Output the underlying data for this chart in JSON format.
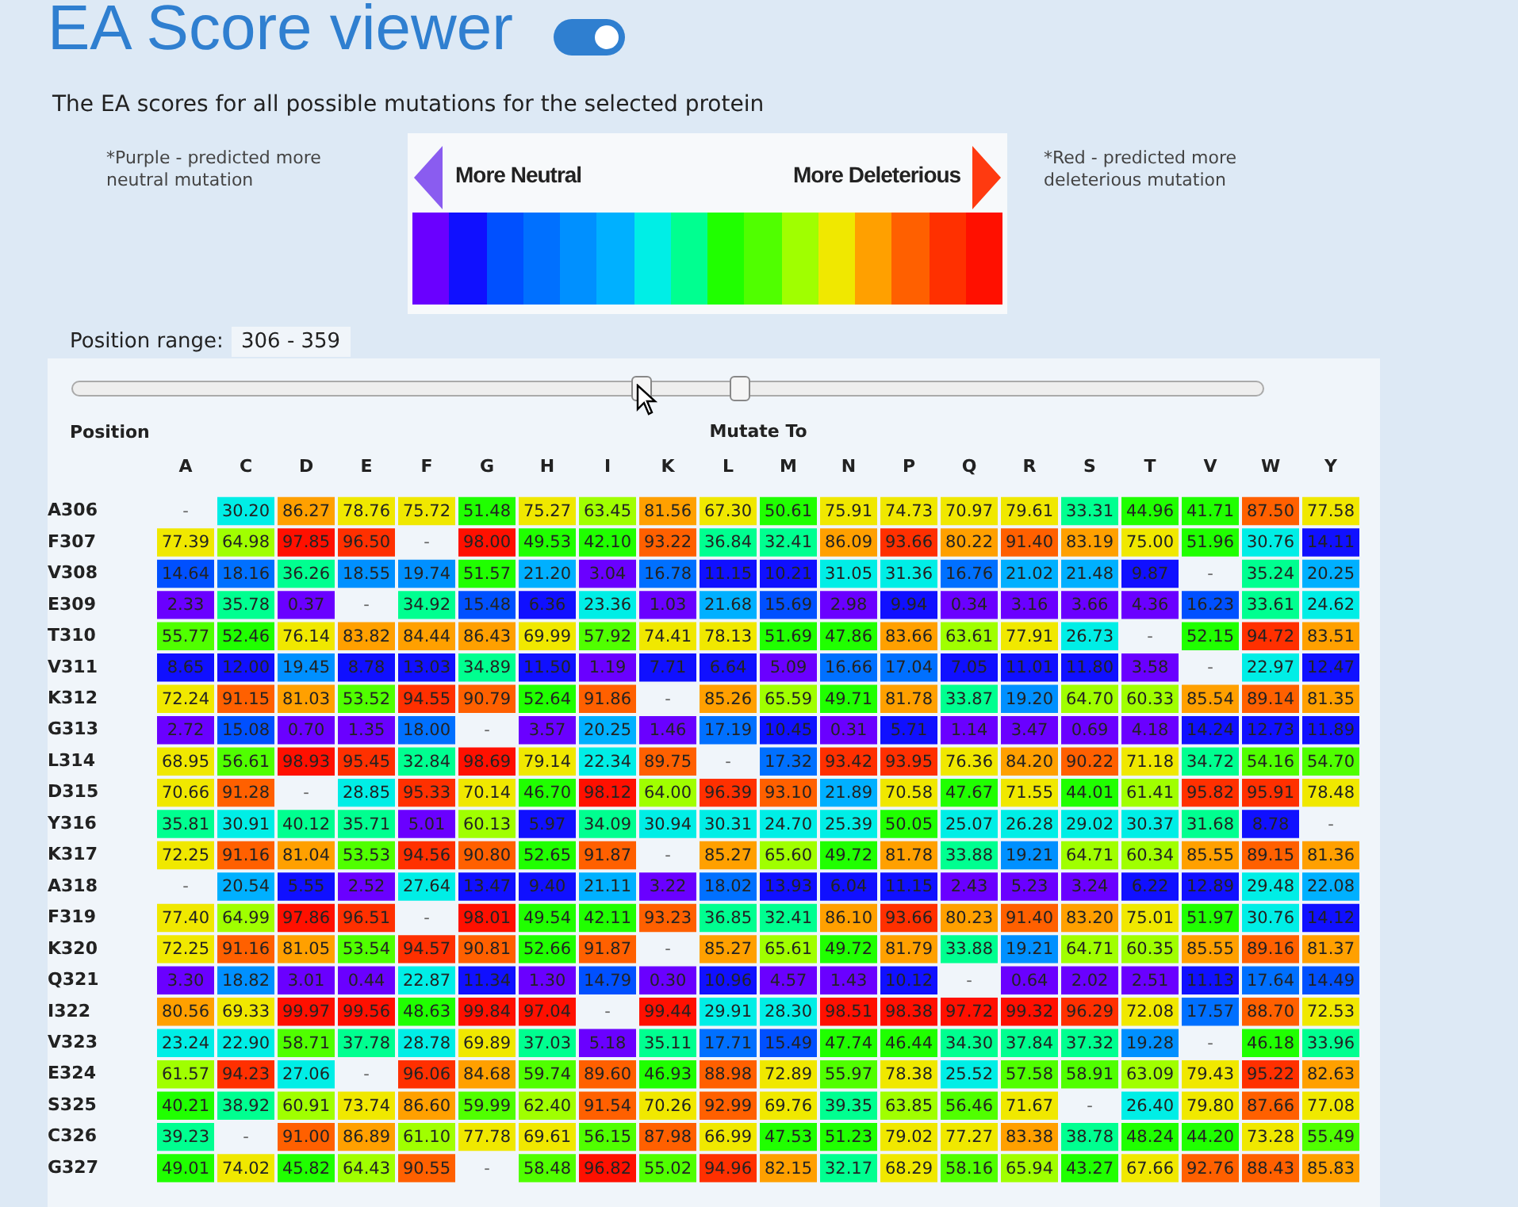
{
  "chart_data": {
    "type": "heatmap",
    "title": "EA Score viewer",
    "subtitle": "The EA scores for all possible mutations for the selected protein",
    "xlabel": "Mutate To",
    "ylabel": "Position",
    "annotations": [
      "*Purple - predicted more neutral mutation",
      "*Red - predicted more deleterious mutation",
      "More Neutral",
      "More Deleterious",
      "Position range:",
      "306 - 359"
    ],
    "categories": [
      "A",
      "C",
      "D",
      "E",
      "F",
      "G",
      "H",
      "I",
      "K",
      "L",
      "M",
      "N",
      "P",
      "Q",
      "R",
      "S",
      "T",
      "V",
      "W",
      "Y"
    ],
    "y_categories": [
      "A306",
      "F307",
      "V308",
      "E309",
      "T310",
      "V311",
      "K312",
      "G313",
      "L314",
      "D315",
      "Y316",
      "K317",
      "A318",
      "F319",
      "K320",
      "Q321",
      "I322",
      "V323",
      "E324",
      "S325",
      "C326",
      "G327"
    ],
    "cells": [
      [
        null,
        30.2,
        86.27,
        78.76,
        75.72,
        51.48,
        75.27,
        63.45,
        81.56,
        67.3,
        50.61,
        75.91,
        74.73,
        70.97,
        79.61,
        33.31,
        44.96,
        41.71,
        87.5,
        77.58
      ],
      [
        77.39,
        64.98,
        97.85,
        96.5,
        null,
        98.0,
        49.53,
        42.1,
        93.22,
        36.84,
        32.41,
        86.09,
        93.66,
        80.22,
        91.4,
        83.19,
        75.0,
        51.96,
        30.76,
        14.11
      ],
      [
        14.64,
        18.16,
        36.26,
        18.55,
        19.74,
        51.57,
        21.2,
        3.04,
        16.78,
        11.15,
        10.21,
        31.05,
        31.36,
        16.76,
        21.02,
        21.48,
        9.87,
        null,
        35.24,
        20.25
      ],
      [
        2.33,
        35.78,
        0.37,
        null,
        34.92,
        15.48,
        6.36,
        23.36,
        1.03,
        21.68,
        15.69,
        2.98,
        9.94,
        0.34,
        3.16,
        3.66,
        4.36,
        16.23,
        33.61,
        24.62
      ],
      [
        55.77,
        52.46,
        76.14,
        83.82,
        84.44,
        86.43,
        69.99,
        57.92,
        74.41,
        78.13,
        51.69,
        47.86,
        83.66,
        63.61,
        77.91,
        26.73,
        null,
        52.15,
        94.72,
        83.51
      ],
      [
        8.65,
        12.0,
        19.45,
        8.78,
        13.03,
        34.89,
        11.5,
        1.19,
        7.71,
        6.64,
        5.09,
        16.66,
        17.04,
        7.05,
        11.01,
        11.8,
        3.58,
        null,
        22.97,
        12.47
      ],
      [
        72.24,
        91.15,
        81.03,
        53.52,
        94.55,
        90.79,
        52.64,
        91.86,
        null,
        85.26,
        65.59,
        49.71,
        81.78,
        33.87,
        19.2,
        64.7,
        60.33,
        85.54,
        89.14,
        81.35
      ],
      [
        2.72,
        15.08,
        0.7,
        1.35,
        18.0,
        null,
        3.57,
        20.25,
        1.46,
        17.19,
        10.45,
        0.31,
        5.71,
        1.14,
        3.47,
        0.69,
        4.18,
        14.24,
        12.73,
        11.89
      ],
      [
        68.95,
        56.61,
        98.93,
        95.45,
        32.84,
        98.69,
        79.14,
        22.34,
        89.75,
        null,
        17.32,
        93.42,
        93.95,
        76.36,
        84.2,
        90.22,
        71.18,
        34.72,
        54.16,
        54.7
      ],
      [
        70.66,
        91.28,
        null,
        28.85,
        95.33,
        70.14,
        46.7,
        98.12,
        64.0,
        96.39,
        93.1,
        21.89,
        70.58,
        47.67,
        71.55,
        44.01,
        61.41,
        95.82,
        95.91,
        78.48
      ],
      [
        35.81,
        30.91,
        40.12,
        35.71,
        5.01,
        60.13,
        5.97,
        34.09,
        30.94,
        30.31,
        24.7,
        25.39,
        50.05,
        25.07,
        26.28,
        29.02,
        30.37,
        31.68,
        8.78,
        null
      ],
      [
        72.25,
        91.16,
        81.04,
        53.53,
        94.56,
        90.8,
        52.65,
        91.87,
        null,
        85.27,
        65.6,
        49.72,
        81.78,
        33.88,
        19.21,
        64.71,
        60.34,
        85.55,
        89.15,
        81.36
      ],
      [
        null,
        20.54,
        5.55,
        2.52,
        27.64,
        13.47,
        9.4,
        21.11,
        3.22,
        18.02,
        13.93,
        6.04,
        11.15,
        2.43,
        5.23,
        3.24,
        6.22,
        12.89,
        29.48,
        22.08
      ],
      [
        77.4,
        64.99,
        97.86,
        96.51,
        null,
        98.01,
        49.54,
        42.11,
        93.23,
        36.85,
        32.41,
        86.1,
        93.66,
        80.23,
        91.4,
        83.2,
        75.01,
        51.97,
        30.76,
        14.12
      ],
      [
        72.25,
        91.16,
        81.05,
        53.54,
        94.57,
        90.81,
        52.66,
        91.87,
        null,
        85.27,
        65.61,
        49.72,
        81.79,
        33.88,
        19.21,
        64.71,
        60.35,
        85.55,
        89.16,
        81.37
      ],
      [
        3.3,
        18.82,
        3.01,
        0.44,
        22.87,
        11.34,
        1.3,
        14.79,
        0.3,
        10.96,
        4.57,
        1.43,
        10.12,
        null,
        0.64,
        2.02,
        2.51,
        11.13,
        17.64,
        14.49
      ],
      [
        80.56,
        69.33,
        99.97,
        99.56,
        48.63,
        99.84,
        97.04,
        null,
        99.44,
        29.91,
        28.3,
        98.51,
        98.38,
        97.72,
        99.32,
        96.29,
        72.08,
        17.57,
        88.7,
        72.53
      ],
      [
        23.24,
        22.9,
        58.71,
        37.78,
        28.78,
        69.89,
        37.03,
        5.18,
        35.11,
        17.71,
        15.49,
        47.74,
        46.44,
        34.3,
        37.84,
        37.32,
        19.28,
        null,
        46.18,
        33.96
      ],
      [
        61.57,
        94.23,
        27.06,
        null,
        96.06,
        84.68,
        59.74,
        89.6,
        46.93,
        88.98,
        72.89,
        55.97,
        78.38,
        25.52,
        57.58,
        58.91,
        63.09,
        79.43,
        95.22,
        82.63
      ],
      [
        40.21,
        38.92,
        60.91,
        73.74,
        86.6,
        59.99,
        62.4,
        91.54,
        70.26,
        92.99,
        69.76,
        39.35,
        63.85,
        56.46,
        71.67,
        null,
        26.4,
        79.8,
        87.66,
        77.08
      ],
      [
        39.23,
        null,
        91.0,
        86.89,
        61.1,
        77.78,
        69.61,
        56.15,
        87.98,
        66.99,
        47.53,
        51.23,
        79.02,
        77.27,
        83.38,
        38.78,
        48.24,
        44.2,
        73.28,
        55.49
      ],
      [
        49.01,
        74.02,
        45.82,
        64.43,
        90.55,
        null,
        58.48,
        96.82,
        55.02,
        94.96,
        82.15,
        32.17,
        68.29,
        58.16,
        65.94,
        43.27,
        67.66,
        92.76,
        88.43,
        85.83
      ]
    ],
    "cell_labels": [
      [
        "-",
        "30.20",
        "86.27",
        "78.76",
        "75.72",
        "51.48",
        "75.27",
        "63.45",
        "81.56",
        "67.30",
        "50.61",
        "75.91",
        "74.73",
        "70.97",
        "79.61",
        "33.31",
        "44.96",
        "41.71",
        "87.50",
        "77.58"
      ],
      [
        "77.39",
        "64.98",
        "97.85",
        "96.50",
        "-",
        "98.00",
        "49.53",
        "42.10",
        "93.22",
        "36.84",
        "32.41",
        "86.09",
        "93.66",
        "80.22",
        "91.40",
        "83.19",
        "75.00",
        "51.96",
        "30.76",
        "14.11"
      ],
      [
        "14.64",
        "18.16",
        "36.26",
        "18.55",
        "19.74",
        "51.57",
        "21.20",
        "3.04",
        "16.78",
        "11.15",
        "10.21",
        "31.05",
        "31.36",
        "16.76",
        "21.02",
        "21.48",
        "9.87",
        "-",
        "35.24",
        "20.25"
      ],
      [
        "2.33",
        "35.78",
        "0.37",
        "-",
        "34.92",
        "15.48",
        "6.36",
        "23.36",
        "1.03",
        "21.68",
        "15.69",
        "2.98",
        "9.94",
        "0.34",
        "3.16",
        "3.66",
        "4.36",
        "16.23",
        "33.61",
        "24.62"
      ],
      [
        "55.77",
        "52.46",
        "76.14",
        "83.82",
        "84.44",
        "86.43",
        "69.99",
        "57.92",
        "74.41",
        "78.13",
        "51.69",
        "47.86",
        "83.66",
        "63.61",
        "77.91",
        "26.73",
        "-",
        "52.15",
        "94.72",
        "83.51"
      ],
      [
        "8.65",
        "12.00",
        "19.45",
        "8.78",
        "13.03",
        "34.89",
        "11.50",
        "1.19",
        "7.71",
        "6.64",
        "5.09",
        "16.66",
        "17.04",
        "7.05",
        "11.01",
        "11.80",
        "3.58",
        "-",
        "22.97",
        "12.47"
      ],
      [
        "72.24",
        "91.15",
        "81.03",
        "53.52",
        "94.55",
        "90.79",
        "52.64",
        "91.86",
        "-",
        "85.26",
        "65.59",
        "49.71",
        "81.78",
        "33.87",
        "19.20",
        "64.70",
        "60.33",
        "85.54",
        "89.14",
        "81.35"
      ],
      [
        "2.72",
        "15.08",
        "0.70",
        "1.35",
        "18.00",
        "-",
        "3.57",
        "20.25",
        "1.46",
        "17.19",
        "10.45",
        "0.31",
        "5.71",
        "1.14",
        "3.47",
        "0.69",
        "4.18",
        "14.24",
        "12.73",
        "11.89"
      ],
      [
        "68.95",
        "56.61",
        "98.93",
        "95.45",
        "32.84",
        "98.69",
        "79.14",
        "22.34",
        "89.75",
        "-",
        "17.32",
        "93.42",
        "93.95",
        "76.36",
        "84.20",
        "90.22",
        "71.18",
        "34.72",
        "54.16",
        "54.70"
      ],
      [
        "70.66",
        "91.28",
        "-",
        "28.85",
        "95.33",
        "70.14",
        "46.70",
        "98.12",
        "64.00",
        "96.39",
        "93.10",
        "21.89",
        "70.58",
        "47.67",
        "71.55",
        "44.01",
        "61.41",
        "95.82",
        "95.91",
        "78.48"
      ],
      [
        "35.81",
        "30.91",
        "40.12",
        "35.71",
        "5.01",
        "60.13",
        "5.97",
        "34.09",
        "30.94",
        "30.31",
        "24.70",
        "25.39",
        "50.05",
        "25.07",
        "26.28",
        "29.02",
        "30.37",
        "31.68",
        "8.78",
        "-"
      ],
      [
        "72.25",
        "91.16",
        "81.04",
        "53.53",
        "94.56",
        "90.80",
        "52.65",
        "91.87",
        "-",
        "85.27",
        "65.60",
        "49.72",
        "81.78",
        "33.88",
        "19.21",
        "64.71",
        "60.34",
        "85.55",
        "89.15",
        "81.36"
      ],
      [
        "-",
        "20.54",
        "5.55",
        "2.52",
        "27.64",
        "13.47",
        "9.40",
        "21.11",
        "3.22",
        "18.02",
        "13.93",
        "6.04",
        "11.15",
        "2.43",
        "5.23",
        "3.24",
        "6.22",
        "12.89",
        "29.48",
        "22.08"
      ],
      [
        "77.40",
        "64.99",
        "97.86",
        "96.51",
        "-",
        "98.01",
        "49.54",
        "42.11",
        "93.23",
        "36.85",
        "32.41",
        "86.10",
        "93.66",
        "80.23",
        "91.40",
        "83.20",
        "75.01",
        "51.97",
        "30.76",
        "14.12"
      ],
      [
        "72.25",
        "91.16",
        "81.05",
        "53.54",
        "94.57",
        "90.81",
        "52.66",
        "91.87",
        "-",
        "85.27",
        "65.61",
        "49.72",
        "81.79",
        "33.88",
        "19.21",
        "64.71",
        "60.35",
        "85.55",
        "89.16",
        "81.37"
      ],
      [
        "3.30",
        "18.82",
        "3.01",
        "0.44",
        "22.87",
        "11.34",
        "1.30",
        "14.79",
        "0.30",
        "10.96",
        "4.57",
        "1.43",
        "10.12",
        "-",
        "0.64",
        "2.02",
        "2.51",
        "11.13",
        "17.64",
        "14.49"
      ],
      [
        "80.56",
        "69.33",
        "99.97",
        "99.56",
        "48.63",
        "99.84",
        "97.04",
        "-",
        "99.44",
        "29.91",
        "28.30",
        "98.51",
        "98.38",
        "97.72",
        "99.32",
        "96.29",
        "72.08",
        "17.57",
        "88.70",
        "72.53"
      ],
      [
        "23.24",
        "22.90",
        "58.71",
        "37.78",
        "28.78",
        "69.89",
        "37.03",
        "5.18",
        "35.11",
        "17.71",
        "15.49",
        "47.74",
        "46.44",
        "34.30",
        "37.84",
        "37.32",
        "19.28",
        "-",
        "46.18",
        "33.96"
      ],
      [
        "61.57",
        "94.23",
        "27.06",
        "-",
        "96.06",
        "84.68",
        "59.74",
        "89.60",
        "46.93",
        "88.98",
        "72.89",
        "55.97",
        "78.38",
        "25.52",
        "57.58",
        "58.91",
        "63.09",
        "79.43",
        "95.22",
        "82.63"
      ],
      [
        "40.21",
        "38.92",
        "60.91",
        "73.74",
        "86.60",
        "59.99",
        "62.40",
        "91.54",
        "70.26",
        "92.99",
        "69.76",
        "39.35",
        "63.85",
        "56.46",
        "71.67",
        "-",
        "26.40",
        "79.80",
        "87.66",
        "77.08"
      ],
      [
        "39.23",
        "-",
        "91.00",
        "86.89",
        "61.10",
        "77.78",
        "69.61",
        "56.15",
        "87.98",
        "66.99",
        "47.53",
        "51.23",
        "79.02",
        "77.27",
        "83.38",
        "38.78",
        "48.24",
        "44.20",
        "73.28",
        "55.49"
      ],
      [
        "49.01",
        "74.02",
        "45.82",
        "64.43",
        "90.55",
        "-",
        "58.48",
        "96.82",
        "55.02",
        "94.96",
        "82.15",
        "32.17",
        "68.29",
        "58.16",
        "65.94",
        "43.27",
        "67.66",
        "92.76",
        "88.43",
        "85.83"
      ]
    ]
  }
}
